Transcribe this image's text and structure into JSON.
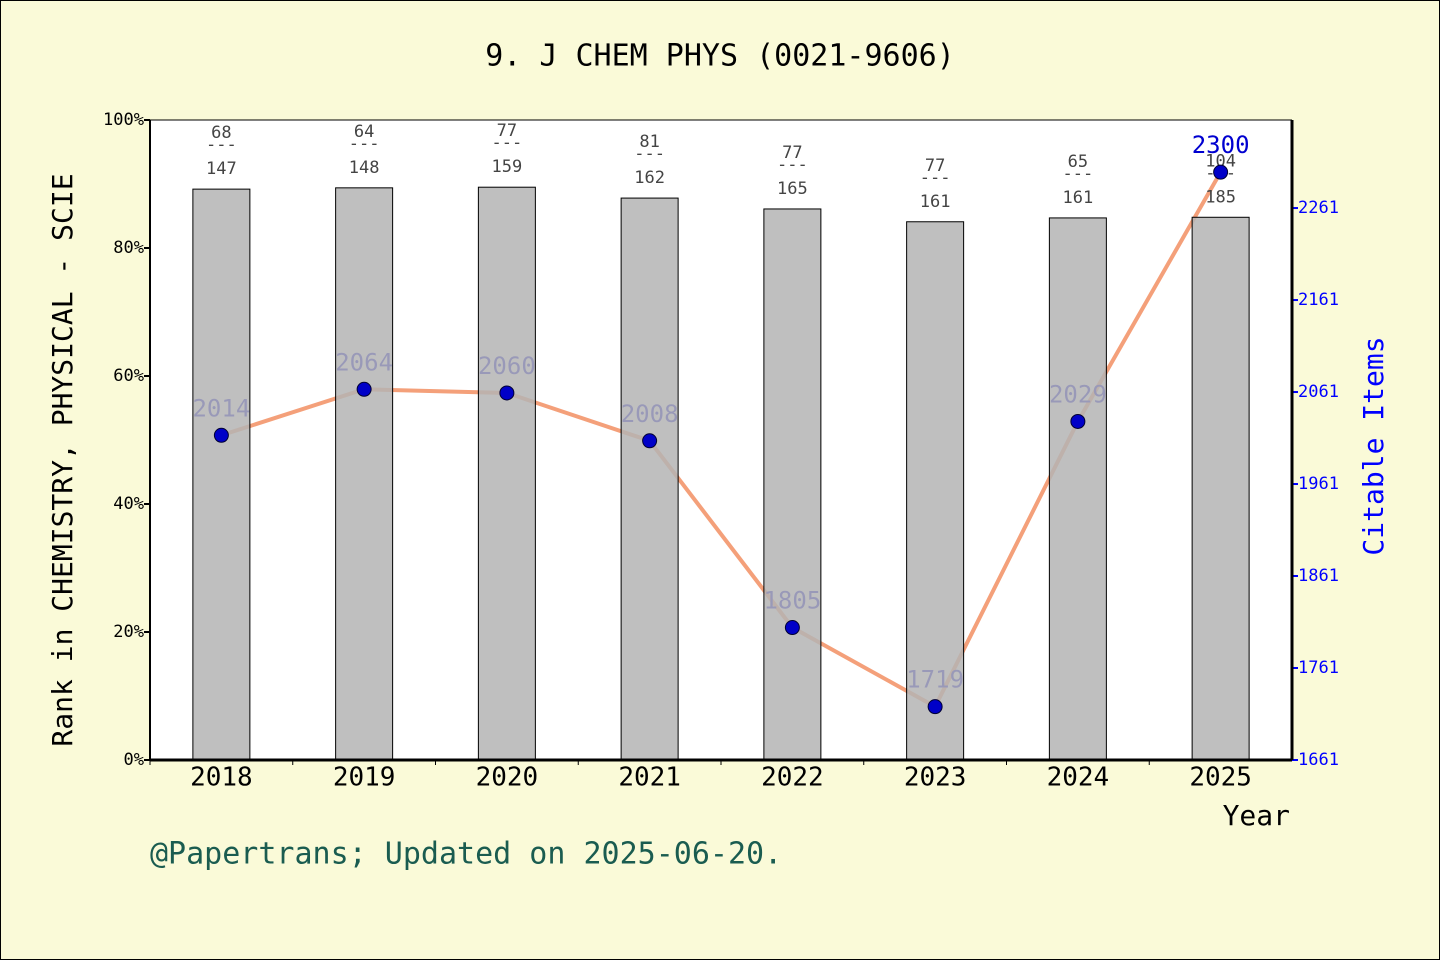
{
  "chart_data": {
    "type": "bar_line",
    "title": "9. J CHEM PHYS (0021-9606)",
    "y_label": "Rank in CHEMISTRY, PHYSICAL - SCIE",
    "y2_label": "Citable Items",
    "x_label": "Year",
    "footer": "@Papertrans; Updated on 2025-06-20.",
    "categories": [
      "2018",
      "2019",
      "2020",
      "2021",
      "2022",
      "2023",
      "2024",
      "2025"
    ],
    "series": [
      {
        "type": "bar",
        "color": "#b4b4b4",
        "values": [
          89.2,
          89.4,
          89.5,
          87.8,
          86.1,
          84.1,
          84.7,
          84.8
        ],
        "ranks": [
          68,
          64,
          77,
          81,
          77,
          77,
          65,
          104
        ],
        "totals": [
          147,
          148,
          159,
          162,
          165,
          161,
          161,
          185
        ],
        "rank_separator": "---"
      },
      {
        "type": "line",
        "axis": "y2",
        "color": "#f4a07a",
        "marker_color": "#0000c8",
        "values": [
          2014,
          2064,
          2060,
          2008,
          1805,
          1719,
          2029,
          2300
        ]
      }
    ],
    "ylim": [
      0,
      100
    ],
    "yticks": [
      {
        "value": 0,
        "label": "0%"
      },
      {
        "value": 20,
        "label": "20%"
      },
      {
        "value": 40,
        "label": "40%"
      },
      {
        "value": 60,
        "label": "60%"
      },
      {
        "value": 80,
        "label": "80%"
      },
      {
        "value": 100,
        "label": "100%"
      }
    ],
    "y2lim": [
      1661,
      2356.7
    ],
    "y2ticks": [
      1661,
      1761,
      1861,
      1961,
      2061,
      2161,
      2261
    ]
  }
}
